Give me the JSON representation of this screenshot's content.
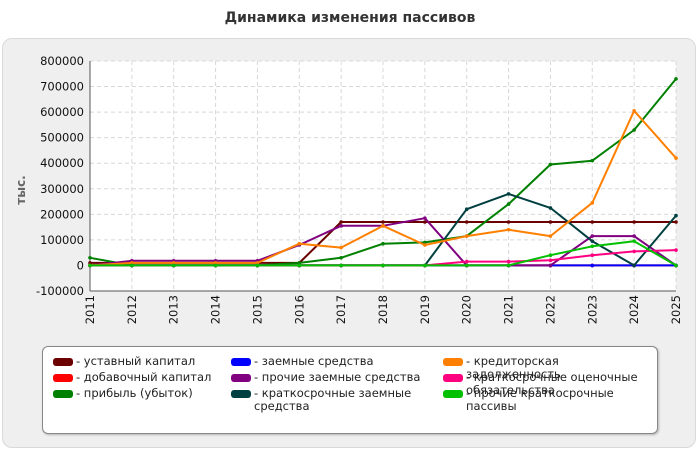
{
  "chart_data": {
    "type": "line",
    "title": "Динамика изменения пассивов",
    "ylabel": "тыс.",
    "xlabel": "",
    "x": [
      "2011",
      "2012",
      "2013",
      "2014",
      "2015",
      "2016",
      "2017",
      "2018",
      "2019",
      "2020",
      "2021",
      "2022",
      "2023",
      "2024",
      "2025"
    ],
    "ylim": [
      -100000,
      800000
    ],
    "yticks": [
      -100000,
      0,
      100000,
      200000,
      300000,
      400000,
      500000,
      600000,
      700000,
      800000
    ],
    "grid": true,
    "legend_position": "bottom",
    "series": [
      {
        "name": "уставный капитал",
        "color": "#6b0000",
        "values": [
          10000,
          10000,
          10000,
          10000,
          10000,
          10000,
          170000,
          170000,
          170000,
          170000,
          170000,
          170000,
          170000,
          170000,
          170000
        ]
      },
      {
        "name": "добавочный капитал",
        "color": "#ff0000",
        "values": [
          0,
          0,
          0,
          0,
          0,
          0,
          0,
          0,
          0,
          0,
          0,
          0,
          0,
          0,
          0
        ]
      },
      {
        "name": "прибыль (убыток)",
        "color": "#008000",
        "values": [
          30000,
          0,
          0,
          0,
          0,
          10000,
          30000,
          85000,
          90000,
          115000,
          240000,
          395000,
          410000,
          530000,
          730000
        ]
      },
      {
        "name": "заемные средства",
        "color": "#0000ff",
        "values": [
          0,
          0,
          0,
          0,
          0,
          0,
          0,
          0,
          0,
          0,
          0,
          0,
          0,
          0,
          0
        ]
      },
      {
        "name": "прочие заемные средства",
        "color": "#800080",
        "values": [
          0,
          18000,
          18000,
          18000,
          18000,
          80000,
          155000,
          155000,
          185000,
          0,
          0,
          0,
          115000,
          115000,
          0
        ]
      },
      {
        "name": "краткосрочные заемные средства",
        "color": "#004040",
        "values": [
          0,
          0,
          0,
          0,
          0,
          0,
          0,
          0,
          0,
          220000,
          280000,
          225000,
          95000,
          0,
          195000
        ]
      },
      {
        "name": "кредиторская задолженность",
        "color": "#ff8000",
        "values": [
          0,
          10000,
          10000,
          10000,
          10000,
          85000,
          70000,
          155000,
          80000,
          115000,
          140000,
          115000,
          245000,
          605000,
          420000
        ]
      },
      {
        "name": "краткосрочные оценочные обязательства",
        "color": "#ff0080",
        "values": [
          0,
          0,
          0,
          0,
          0,
          0,
          0,
          0,
          0,
          15000,
          15000,
          20000,
          40000,
          55000,
          60000
        ]
      },
      {
        "name": "прочие краткосрочные пассивы",
        "color": "#00c000",
        "values": [
          0,
          0,
          0,
          0,
          0,
          0,
          0,
          0,
          0,
          0,
          0,
          40000,
          75000,
          95000,
          0
        ]
      }
    ]
  }
}
